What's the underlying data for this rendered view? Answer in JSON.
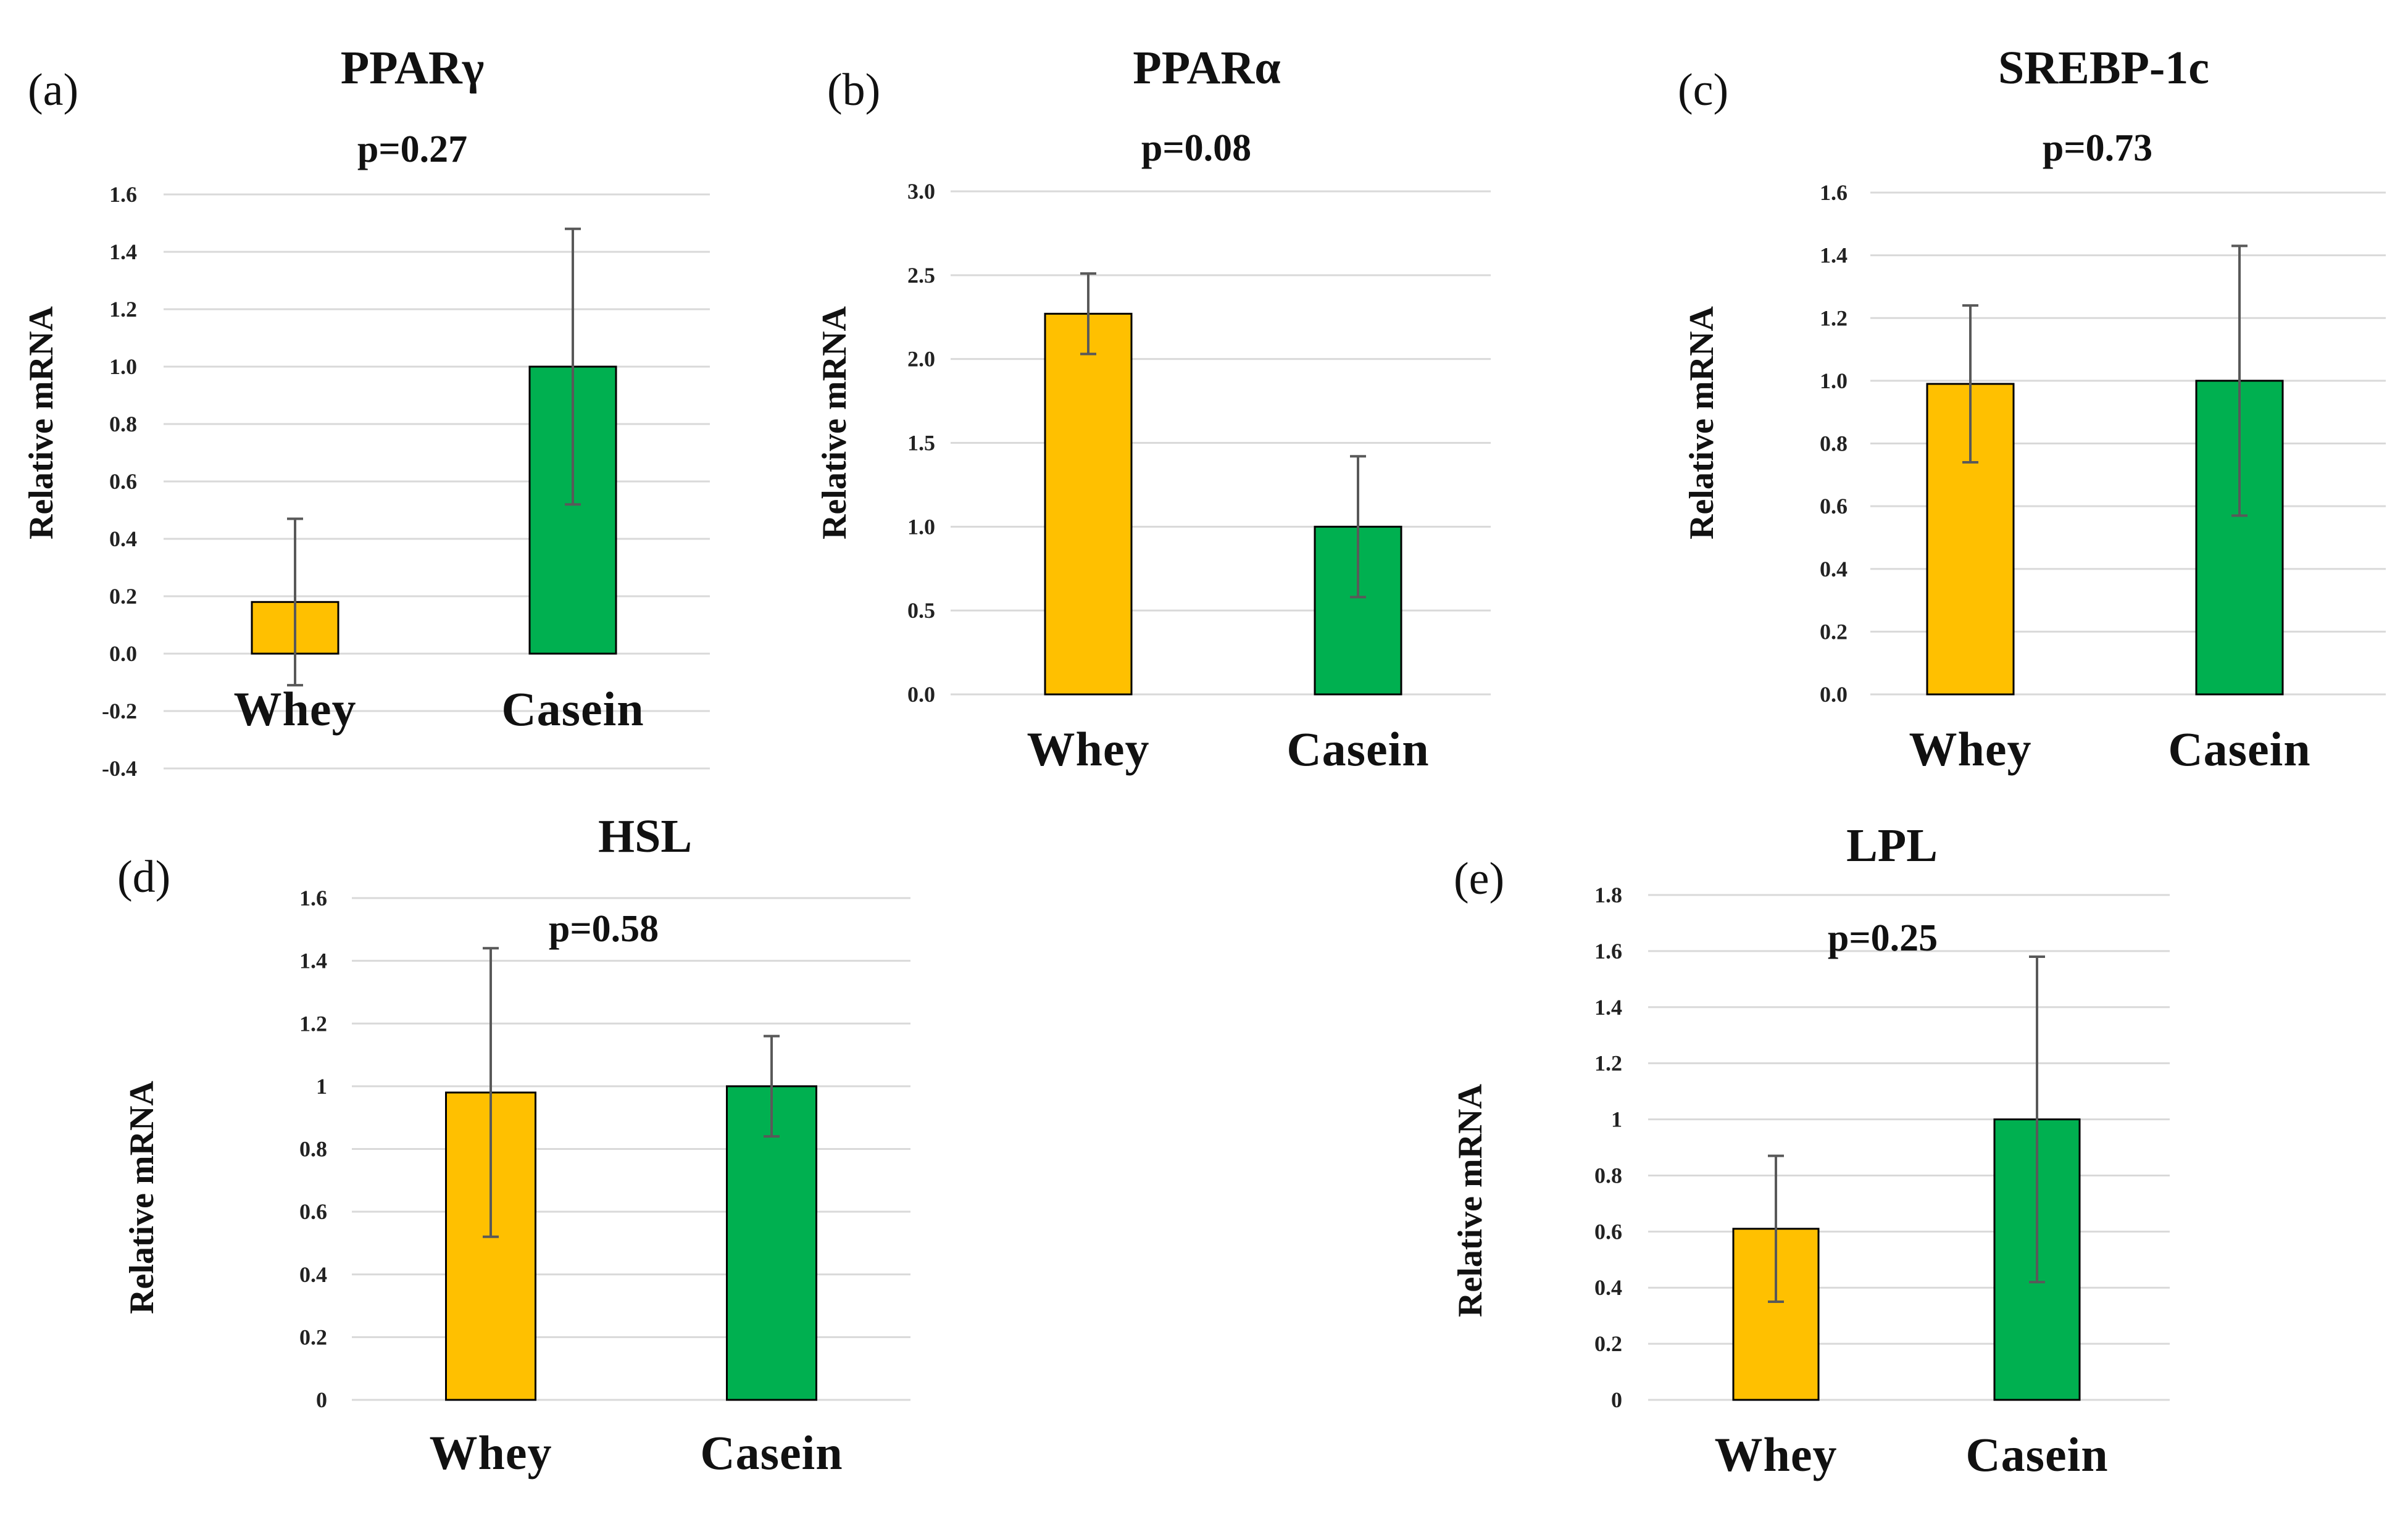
{
  "figure": {
    "colors": {
      "whey": "#FFC000",
      "casein": "#00B050",
      "grid": "#d9d9d9"
    }
  },
  "chart_data": [
    {
      "id": "a",
      "panel_label": "(a)",
      "type": "bar",
      "title": "PPARγ",
      "p_value": "p=0.27",
      "ylabel": "Relative mRNA",
      "categories": [
        "Whey",
        "Casein"
      ],
      "values": [
        0.18,
        1.0
      ],
      "error": [
        0.29,
        0.48
      ],
      "ylim": [
        -0.4,
        1.6
      ],
      "ticks": [
        -0.4,
        -0.2,
        0.0,
        0.2,
        0.4,
        0.6,
        0.8,
        1.0,
        1.2,
        1.4,
        1.6
      ],
      "tick_labels": [
        "-0.4",
        "-0.2",
        "0.0",
        "0.2",
        "0.4",
        "0.6",
        "0.8",
        "1.0",
        "1.2",
        "1.4",
        "1.6"
      ]
    },
    {
      "id": "b",
      "panel_label": "(b)",
      "type": "bar",
      "title": "PPARα",
      "p_value": "p=0.08",
      "ylabel": "Relative mRNA",
      "categories": [
        "Whey",
        "Casein"
      ],
      "values": [
        2.27,
        1.0
      ],
      "error": [
        0.24,
        0.42
      ],
      "ylim": [
        0,
        3.0
      ],
      "ticks": [
        0,
        0.5,
        1.0,
        1.5,
        2.0,
        2.5,
        3.0
      ],
      "tick_labels": [
        "0.0",
        "0.5",
        "1.0",
        "1.5",
        "2.0",
        "2.5",
        "3.0"
      ]
    },
    {
      "id": "c",
      "panel_label": "(c)",
      "type": "bar",
      "title": "SREBP-1c",
      "p_value": "p=0.73",
      "ylabel": "Relative mRNA",
      "categories": [
        "Whey",
        "Casein"
      ],
      "values": [
        0.99,
        1.0
      ],
      "error": [
        0.25,
        0.43
      ],
      "ylim": [
        0,
        1.6
      ],
      "ticks": [
        0,
        0.2,
        0.4,
        0.6,
        0.8,
        1.0,
        1.2,
        1.4,
        1.6
      ],
      "tick_labels": [
        "0.0",
        "0.2",
        "0.4",
        "0.6",
        "0.8",
        "1.0",
        "1.2",
        "1.4",
        "1.6"
      ]
    },
    {
      "id": "d",
      "panel_label": "(d)",
      "type": "bar",
      "title": "HSL",
      "p_value": "p=0.58",
      "ylabel": "Relative mRNA",
      "categories": [
        "Whey",
        "Casein"
      ],
      "values": [
        0.98,
        1.0
      ],
      "error": [
        0.46,
        0.16
      ],
      "ylim": [
        0,
        1.6
      ],
      "ticks": [
        0,
        0.2,
        0.4,
        0.6,
        0.8,
        1.0,
        1.2,
        1.4,
        1.6
      ],
      "tick_labels": [
        "0",
        "0.2",
        "0.4",
        "0.6",
        "0.8",
        "1",
        "1.2",
        "1.4",
        "1.6"
      ]
    },
    {
      "id": "e",
      "panel_label": "(e)",
      "type": "bar",
      "title": "LPL",
      "p_value": "p=0.25",
      "ylabel": "Relative mRNA",
      "categories": [
        "Whey",
        "Casein"
      ],
      "values": [
        0.61,
        1.0
      ],
      "error": [
        0.26,
        0.58
      ],
      "ylim": [
        0,
        1.8
      ],
      "ticks": [
        0,
        0.2,
        0.4,
        0.6,
        0.8,
        1.0,
        1.2,
        1.4,
        1.6,
        1.8
      ],
      "tick_labels": [
        "0",
        "0.2",
        "0.4",
        "0.6",
        "0.8",
        "1",
        "1.2",
        "1.4",
        "1.6",
        "1.8"
      ]
    }
  ]
}
